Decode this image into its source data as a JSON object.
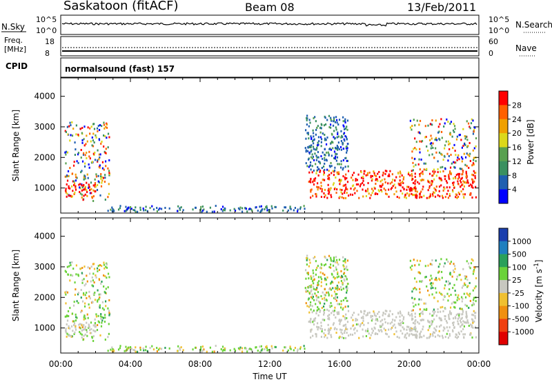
{
  "header": {
    "station": "Saskatoon (fitACF)",
    "beam": "Beam 08",
    "date": "13/Feb/2011"
  },
  "noise_panel": {
    "left_label": "N.Sky",
    "left_ticks": [
      "10^5",
      "10^0"
    ],
    "right_label": "N.Search",
    "right_ticks": [
      "10^5",
      "10^0"
    ]
  },
  "freq_panel": {
    "left_label_line1": "Freq.",
    "left_label_line2": "[MHz]",
    "left_ticks": [
      "18",
      "8"
    ],
    "right_label": "Nave",
    "right_ticks": [
      "60",
      "0"
    ]
  },
  "cpid_panel": {
    "label": "CPID",
    "text": "normalsound (fast) 157"
  },
  "chart_data": [
    {
      "type": "heatmap",
      "name": "power",
      "ylabel": "Slant Range [km]",
      "xlabel": "",
      "xlim": [
        "00:00",
        "24:00"
      ],
      "ylim": [
        180,
        4600
      ],
      "yticks": [
        1000,
        2000,
        3000,
        4000
      ],
      "colorbar": {
        "label": "Power [dB]",
        "ticks": [
          "4",
          "8",
          "12",
          "16",
          "20",
          "24",
          "28"
        ],
        "colors": [
          "#0000ff",
          "#1f5fb0",
          "#3a9060",
          "#58a050",
          "#dcd81a",
          "#f0a000",
          "#ff6000",
          "#ff0000"
        ]
      },
      "regions": [
        {
          "t0": 0.2,
          "t1": 2.8,
          "r0": 600,
          "r1": 3200,
          "level": "mixed"
        },
        {
          "t0": 0.2,
          "t1": 2.0,
          "r0": 700,
          "r1": 1200,
          "level": "high"
        },
        {
          "t0": 14.2,
          "t1": 23.8,
          "r0": 700,
          "r1": 1600,
          "level": "high"
        },
        {
          "t0": 14.0,
          "t1": 16.5,
          "r0": 1600,
          "r1": 3400,
          "level": "low"
        },
        {
          "t0": 20.0,
          "t1": 23.8,
          "r0": 1600,
          "r1": 3300,
          "level": "mixed"
        },
        {
          "t0": 2.5,
          "t1": 14.0,
          "r0": 250,
          "r1": 450,
          "level": "low"
        }
      ]
    },
    {
      "type": "heatmap",
      "name": "velocity",
      "ylabel": "Slant Range [km]",
      "xlabel": "Time UT",
      "xticks": [
        "00:00",
        "04:00",
        "08:00",
        "12:00",
        "16:00",
        "20:00",
        "00:00"
      ],
      "ylim": [
        180,
        4600
      ],
      "yticks": [
        1000,
        2000,
        3000,
        4000
      ],
      "colorbar": {
        "label": "Velocity [m s^-1]",
        "ticks": [
          "1000",
          "500",
          "100",
          "25",
          "-25",
          "-100",
          "-500",
          "-1000"
        ],
        "colors": [
          "#1b3fae",
          "#1f7fbf",
          "#2aa05a",
          "#6bd23a",
          "#c8c8c0",
          "#f0c030",
          "#f09010",
          "#f04010",
          "#e00000"
        ]
      }
    }
  ]
}
